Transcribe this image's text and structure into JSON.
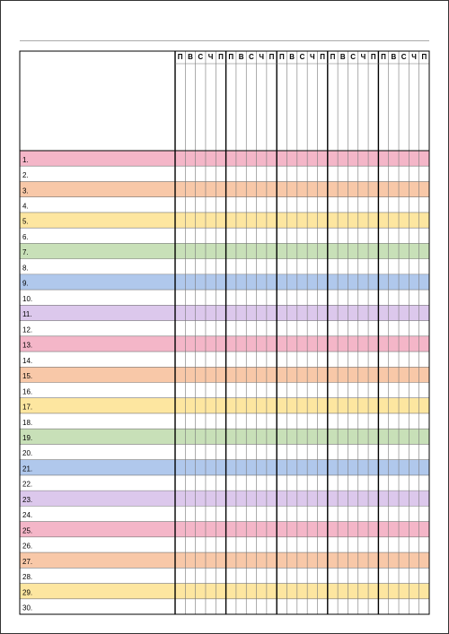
{
  "header": {
    "weeks": [
      [
        "П",
        "В",
        "С",
        "Ч",
        "П"
      ],
      [
        "П",
        "В",
        "С",
        "Ч",
        "П"
      ],
      [
        "П",
        "В",
        "С",
        "Ч",
        "П"
      ],
      [
        "П",
        "В",
        "С",
        "Ч",
        "П"
      ],
      [
        "П",
        "В",
        "С",
        "Ч",
        "П"
      ]
    ]
  },
  "table": {
    "rows": [
      "1.",
      "2.",
      "3.",
      "4.",
      "5.",
      "6.",
      "7.",
      "8.",
      "9.",
      "10.",
      "11.",
      "12.",
      "13.",
      "14.",
      "15.",
      "16.",
      "17.",
      "18.",
      "19.",
      "20.",
      "21.",
      "22.",
      "23.",
      "24.",
      "25.",
      "26.",
      "27.",
      "28.",
      "29.",
      "30."
    ]
  }
}
